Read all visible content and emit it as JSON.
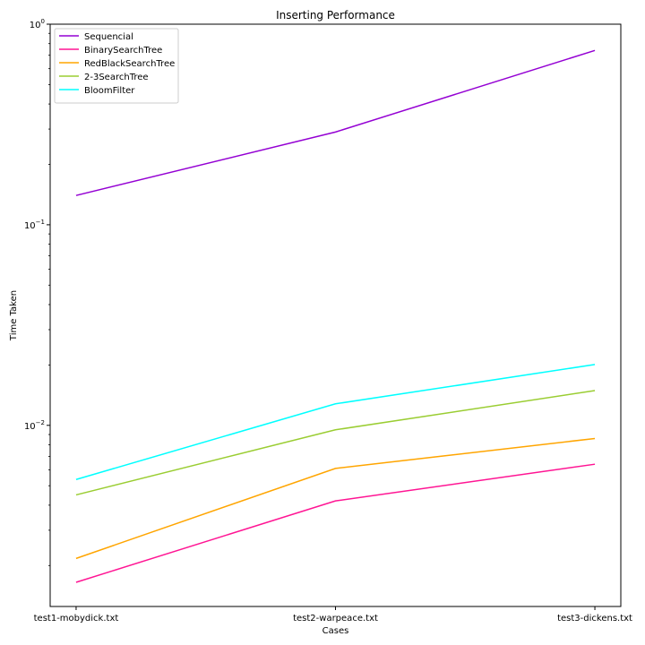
{
  "chart_data": {
    "type": "line",
    "title": "Inserting Performance",
    "xlabel": "Cases",
    "ylabel": "Time Taken",
    "yscale": "log",
    "ylim": [
      0.00125,
      1.0
    ],
    "yticks": [
      {
        "value": 1.0,
        "base": "10",
        "exp": "0"
      },
      {
        "value": 0.1,
        "base": "10",
        "exp": "−1"
      },
      {
        "value": 0.01,
        "base": "10",
        "exp": "−2"
      }
    ],
    "grid": false,
    "legend_position": "top-left",
    "categories": [
      "test1-mobydick.txt",
      "test2-warpeace.txt",
      "test3-dickens.txt"
    ],
    "series": [
      {
        "name": "Sequencial",
        "color": "#9400d3",
        "values": [
          0.14,
          0.29,
          0.74
        ]
      },
      {
        "name": "BinarySearchTree",
        "color": "#ff1493",
        "values": [
          0.00165,
          0.0042,
          0.0064
        ]
      },
      {
        "name": "RedBlackSearchTree",
        "color": "#ffa500",
        "values": [
          0.00217,
          0.0061,
          0.0086
        ]
      },
      {
        "name": "2-3SearchTree",
        "color": "#9acd32",
        "values": [
          0.0045,
          0.0095,
          0.0149
        ]
      },
      {
        "name": "BloomFilter",
        "color": "#00ffff",
        "values": [
          0.00537,
          0.0128,
          0.0201
        ]
      }
    ]
  }
}
